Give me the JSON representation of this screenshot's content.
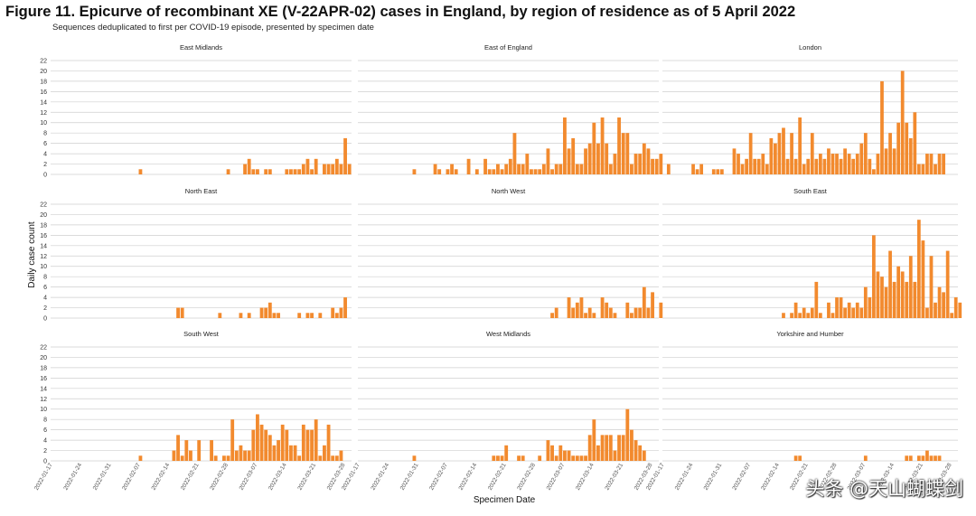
{
  "figure": {
    "title": "Figure 11. Epicurve of recombinant XE (V-22APR-02) cases in England, by region of residence as of 5 April 2022",
    "subtitle": "Sequences deduplicated to first per COVID-19 episode, presented by specimen date"
  },
  "watermark": "头条 @天山蝴蝶剑",
  "chart_data": {
    "type": "bar",
    "layout": "small-multiples 3x3",
    "ylabel": "Daily case count",
    "xlabel": "Specimen Date",
    "ylim": [
      0,
      22
    ],
    "yticks": [
      0,
      2,
      4,
      6,
      8,
      10,
      12,
      14,
      16,
      18,
      20,
      22
    ],
    "x_start": "2022-01-17",
    "x_days": 72,
    "bar_color": "#f28a2e",
    "xticks": [
      "2022-01-17",
      "2022-01-24",
      "2022-01-31",
      "2022-02-07",
      "2022-02-14",
      "2022-02-21",
      "2022-02-28",
      "2022-03-07",
      "2022-03-14",
      "2022-03-21",
      "2022-03-28"
    ],
    "panels": [
      {
        "name": "East Midlands",
        "counts": [
          [
            21,
            1
          ],
          [
            42,
            1
          ],
          [
            46,
            2
          ],
          [
            47,
            3
          ],
          [
            48,
            1
          ],
          [
            49,
            1
          ],
          [
            51,
            1
          ],
          [
            52,
            1
          ],
          [
            56,
            1
          ],
          [
            57,
            1
          ],
          [
            58,
            1
          ],
          [
            59,
            1
          ],
          [
            60,
            2
          ],
          [
            61,
            3
          ],
          [
            62,
            1
          ],
          [
            63,
            3
          ],
          [
            65,
            2
          ],
          [
            66,
            2
          ],
          [
            67,
            2
          ],
          [
            68,
            3
          ],
          [
            69,
            2
          ],
          [
            70,
            7
          ],
          [
            71,
            2
          ]
        ]
      },
      {
        "name": "East of England",
        "counts": [
          [
            13,
            1
          ],
          [
            18,
            2
          ],
          [
            19,
            1
          ],
          [
            21,
            1
          ],
          [
            22,
            2
          ],
          [
            23,
            1
          ],
          [
            26,
            3
          ],
          [
            28,
            1
          ],
          [
            30,
            3
          ],
          [
            31,
            1
          ],
          [
            32,
            1
          ],
          [
            33,
            2
          ],
          [
            34,
            1
          ],
          [
            35,
            2
          ],
          [
            36,
            3
          ],
          [
            37,
            8
          ],
          [
            38,
            2
          ],
          [
            39,
            2
          ],
          [
            40,
            4
          ],
          [
            41,
            1
          ],
          [
            42,
            1
          ],
          [
            43,
            1
          ],
          [
            44,
            2
          ],
          [
            45,
            5
          ],
          [
            46,
            1
          ],
          [
            47,
            2
          ],
          [
            48,
            2
          ],
          [
            49,
            11
          ],
          [
            50,
            5
          ],
          [
            51,
            7
          ],
          [
            52,
            2
          ],
          [
            53,
            2
          ],
          [
            54,
            5
          ],
          [
            55,
            6
          ],
          [
            56,
            10
          ],
          [
            57,
            6
          ],
          [
            58,
            11
          ],
          [
            59,
            6
          ],
          [
            60,
            2
          ],
          [
            61,
            4
          ],
          [
            62,
            11
          ],
          [
            63,
            8
          ],
          [
            64,
            8
          ],
          [
            65,
            2
          ],
          [
            66,
            4
          ],
          [
            67,
            4
          ],
          [
            68,
            6
          ],
          [
            69,
            5
          ],
          [
            70,
            3
          ],
          [
            71,
            3
          ],
          [
            72,
            4
          ]
        ]
      },
      {
        "name": "London",
        "counts": [
          [
            1,
            2
          ],
          [
            7,
            2
          ],
          [
            8,
            1
          ],
          [
            9,
            2
          ],
          [
            12,
            1
          ],
          [
            13,
            1
          ],
          [
            14,
            1
          ],
          [
            17,
            5
          ],
          [
            18,
            4
          ],
          [
            19,
            2
          ],
          [
            20,
            3
          ],
          [
            21,
            8
          ],
          [
            22,
            3
          ],
          [
            23,
            3
          ],
          [
            24,
            4
          ],
          [
            25,
            2
          ],
          [
            26,
            7
          ],
          [
            27,
            6
          ],
          [
            28,
            8
          ],
          [
            29,
            9
          ],
          [
            30,
            3
          ],
          [
            31,
            8
          ],
          [
            32,
            3
          ],
          [
            33,
            11
          ],
          [
            34,
            2
          ],
          [
            35,
            3
          ],
          [
            36,
            8
          ],
          [
            37,
            3
          ],
          [
            38,
            4
          ],
          [
            39,
            3
          ],
          [
            40,
            5
          ],
          [
            41,
            4
          ],
          [
            42,
            4
          ],
          [
            43,
            3
          ],
          [
            44,
            5
          ],
          [
            45,
            4
          ],
          [
            46,
            3
          ],
          [
            47,
            4
          ],
          [
            48,
            6
          ],
          [
            49,
            8
          ],
          [
            50,
            3
          ],
          [
            51,
            1
          ],
          [
            52,
            4
          ],
          [
            53,
            18
          ],
          [
            54,
            5
          ],
          [
            55,
            8
          ],
          [
            56,
            5
          ],
          [
            57,
            10
          ],
          [
            58,
            20
          ],
          [
            59,
            10
          ],
          [
            60,
            7
          ],
          [
            61,
            12
          ],
          [
            62,
            2
          ],
          [
            63,
            2
          ],
          [
            64,
            4
          ],
          [
            65,
            4
          ],
          [
            66,
            2
          ],
          [
            67,
            4
          ],
          [
            68,
            4
          ]
        ]
      },
      {
        "name": "North East",
        "counts": [
          [
            30,
            2
          ],
          [
            31,
            2
          ],
          [
            40,
            1
          ],
          [
            45,
            1
          ],
          [
            47,
            1
          ],
          [
            50,
            2
          ],
          [
            51,
            2
          ],
          [
            52,
            3
          ],
          [
            53,
            1
          ],
          [
            54,
            1
          ],
          [
            59,
            1
          ],
          [
            61,
            1
          ],
          [
            62,
            1
          ],
          [
            64,
            1
          ],
          [
            67,
            2
          ],
          [
            68,
            1
          ],
          [
            69,
            2
          ],
          [
            70,
            4
          ]
        ]
      },
      {
        "name": "North West",
        "counts": [
          [
            46,
            1
          ],
          [
            47,
            2
          ],
          [
            50,
            4
          ],
          [
            51,
            2
          ],
          [
            52,
            3
          ],
          [
            53,
            4
          ],
          [
            54,
            1
          ],
          [
            55,
            2
          ],
          [
            56,
            1
          ],
          [
            58,
            4
          ],
          [
            59,
            3
          ],
          [
            60,
            2
          ],
          [
            61,
            1
          ],
          [
            64,
            3
          ],
          [
            65,
            1
          ],
          [
            66,
            2
          ],
          [
            67,
            2
          ],
          [
            68,
            6
          ],
          [
            69,
            2
          ],
          [
            70,
            5
          ],
          [
            72,
            3
          ]
        ]
      },
      {
        "name": "South East",
        "counts": [
          [
            29,
            1
          ],
          [
            31,
            1
          ],
          [
            32,
            3
          ],
          [
            33,
            1
          ],
          [
            34,
            2
          ],
          [
            35,
            1
          ],
          [
            36,
            2
          ],
          [
            37,
            7
          ],
          [
            38,
            1
          ],
          [
            40,
            3
          ],
          [
            41,
            1
          ],
          [
            42,
            4
          ],
          [
            43,
            4
          ],
          [
            44,
            2
          ],
          [
            45,
            3
          ],
          [
            46,
            2
          ],
          [
            47,
            3
          ],
          [
            48,
            2
          ],
          [
            49,
            6
          ],
          [
            50,
            4
          ],
          [
            51,
            16
          ],
          [
            52,
            9
          ],
          [
            53,
            8
          ],
          [
            54,
            6
          ],
          [
            55,
            13
          ],
          [
            56,
            7
          ],
          [
            57,
            10
          ],
          [
            58,
            9
          ],
          [
            59,
            7
          ],
          [
            60,
            12
          ],
          [
            61,
            7
          ],
          [
            62,
            19
          ],
          [
            63,
            15
          ],
          [
            64,
            2
          ],
          [
            65,
            12
          ],
          [
            66,
            3
          ],
          [
            67,
            6
          ],
          [
            68,
            5
          ],
          [
            69,
            13
          ],
          [
            70,
            1
          ],
          [
            71,
            4
          ],
          [
            72,
            3
          ]
        ]
      },
      {
        "name": "South West",
        "counts": [
          [
            21,
            1
          ],
          [
            29,
            2
          ],
          [
            30,
            5
          ],
          [
            31,
            1
          ],
          [
            32,
            4
          ],
          [
            33,
            2
          ],
          [
            35,
            4
          ],
          [
            38,
            4
          ],
          [
            39,
            1
          ],
          [
            41,
            1
          ],
          [
            42,
            1
          ],
          [
            43,
            8
          ],
          [
            44,
            2
          ],
          [
            45,
            3
          ],
          [
            46,
            2
          ],
          [
            47,
            2
          ],
          [
            48,
            6
          ],
          [
            49,
            9
          ],
          [
            50,
            7
          ],
          [
            51,
            6
          ],
          [
            52,
            5
          ],
          [
            53,
            3
          ],
          [
            54,
            4
          ],
          [
            55,
            7
          ],
          [
            56,
            6
          ],
          [
            57,
            3
          ],
          [
            58,
            3
          ],
          [
            59,
            1
          ],
          [
            60,
            7
          ],
          [
            61,
            6
          ],
          [
            62,
            6
          ],
          [
            63,
            8
          ],
          [
            64,
            1
          ],
          [
            65,
            3
          ],
          [
            66,
            7
          ],
          [
            67,
            1
          ],
          [
            68,
            1
          ],
          [
            69,
            2
          ]
        ]
      },
      {
        "name": "West Midlands",
        "counts": [
          [
            13,
            1
          ],
          [
            32,
            1
          ],
          [
            33,
            1
          ],
          [
            34,
            1
          ],
          [
            35,
            3
          ],
          [
            38,
            1
          ],
          [
            39,
            1
          ],
          [
            43,
            1
          ],
          [
            45,
            4
          ],
          [
            46,
            3
          ],
          [
            47,
            1
          ],
          [
            48,
            3
          ],
          [
            49,
            2
          ],
          [
            50,
            2
          ],
          [
            51,
            1
          ],
          [
            52,
            1
          ],
          [
            53,
            1
          ],
          [
            54,
            1
          ],
          [
            55,
            5
          ],
          [
            56,
            8
          ],
          [
            57,
            3
          ],
          [
            58,
            5
          ],
          [
            59,
            5
          ],
          [
            60,
            5
          ],
          [
            61,
            2
          ],
          [
            62,
            5
          ],
          [
            63,
            5
          ],
          [
            64,
            10
          ],
          [
            65,
            6
          ],
          [
            66,
            4
          ],
          [
            67,
            3
          ],
          [
            68,
            2
          ]
        ]
      },
      {
        "name": "Yorkshire and Humber",
        "counts": [
          [
            32,
            1
          ],
          [
            33,
            1
          ],
          [
            49,
            1
          ],
          [
            59,
            1
          ],
          [
            60,
            1
          ],
          [
            62,
            1
          ],
          [
            63,
            1
          ],
          [
            64,
            2
          ],
          [
            65,
            1
          ],
          [
            66,
            1
          ],
          [
            67,
            1
          ]
        ]
      }
    ]
  }
}
